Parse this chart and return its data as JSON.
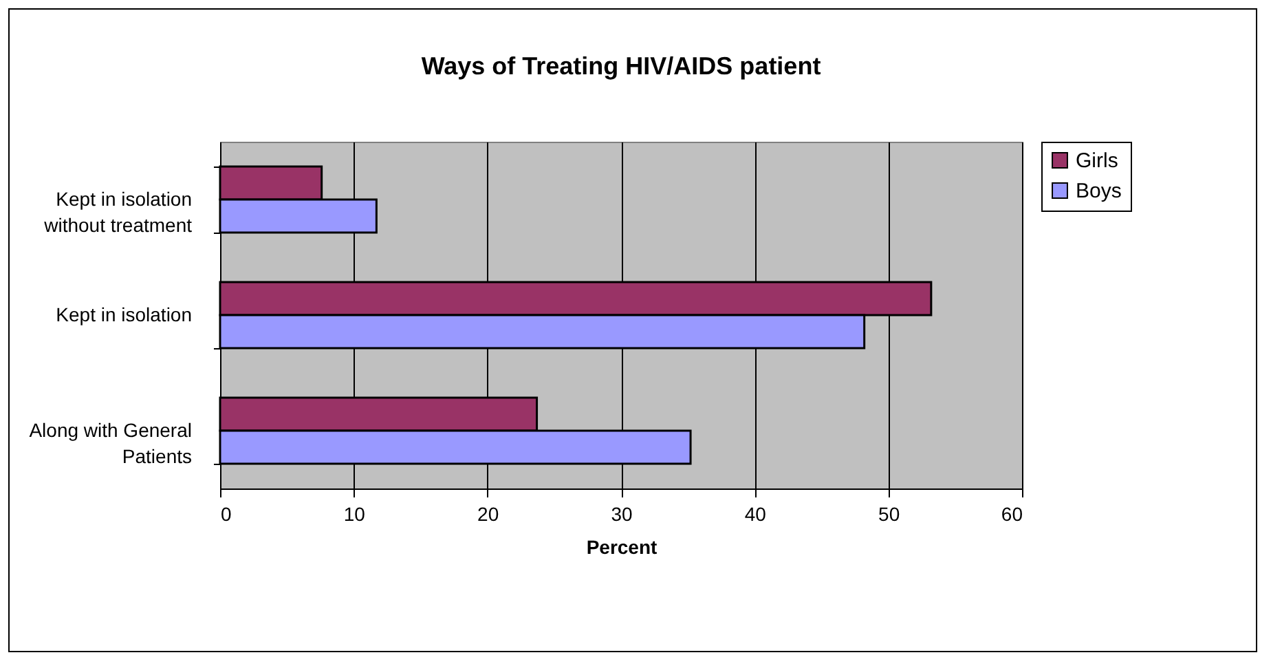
{
  "chart_data": {
    "type": "bar",
    "orientation": "horizontal",
    "title": "Ways of Treating HIV/AIDS patient",
    "xlabel": "Percent",
    "categories": [
      "Kept in isolation without treatment",
      "Kept in isolation",
      "Along with General Patients"
    ],
    "series": [
      {
        "name": "Girls",
        "color": "#993366",
        "values": [
          7.6,
          53.2,
          23.7
        ]
      },
      {
        "name": "Boys",
        "color": "#9999ff",
        "values": [
          11.7,
          48.2,
          35.2
        ]
      }
    ],
    "xlim": [
      0,
      60
    ],
    "xticks": [
      0,
      10,
      20,
      30,
      40,
      50,
      60
    ],
    "grid": "x",
    "legend": "right"
  }
}
